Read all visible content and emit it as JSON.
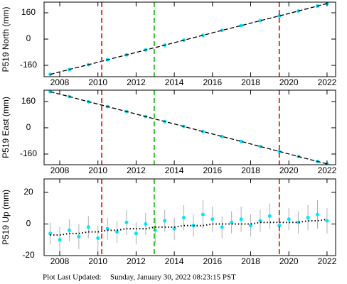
{
  "chart_data": [
    {
      "type": "scatter",
      "ylabel": "P519 North (mm)",
      "x": [
        2007.5,
        2008.5,
        2009.5,
        2010.5,
        2011.5,
        2012.5,
        2013.5,
        2014.5,
        2015.5,
        2016.5,
        2017.5,
        2018.5,
        2019.5,
        2020.5,
        2021.5,
        2022.0
      ],
      "series": [
        {
          "color": "#00e5ff",
          "mode": "markers",
          "values": [
            -215,
            -185,
            -156,
            -126,
            -96,
            -66,
            -37,
            -7,
            23,
            53,
            82,
            112,
            141,
            171,
            201,
            216
          ]
        },
        {
          "color": "#000000",
          "mode": "dashed-line",
          "values": [
            -215,
            -185,
            -156,
            -126,
            -96,
            -66,
            -37,
            -7,
            23,
            53,
            82,
            112,
            141,
            171,
            201,
            216
          ]
        }
      ],
      "events": [
        {
          "x": 2010.2,
          "color": "#e82020"
        },
        {
          "x": 2012.95,
          "color": "#20c020"
        },
        {
          "x": 2019.5,
          "color": "#e82020"
        }
      ],
      "xlim": [
        2007.18,
        2022.45
      ],
      "xticks": [
        2008,
        2010,
        2012,
        2014,
        2016,
        2018,
        2020,
        2022
      ],
      "ylim": [
        -229,
        225
      ],
      "yticks": [
        -160,
        0,
        160
      ]
    },
    {
      "type": "scatter",
      "ylabel": "P519 East (mm)",
      "x": [
        2007.5,
        2008.5,
        2009.5,
        2010.5,
        2011.5,
        2012.5,
        2013.5,
        2014.5,
        2015.5,
        2016.5,
        2017.5,
        2018.5,
        2019.5,
        2020.5,
        2021.5,
        2022.0
      ],
      "series": [
        {
          "color": "#00e5ff",
          "mode": "markers",
          "values": [
            220,
            190,
            159,
            129,
            99,
            68,
            38,
            8,
            -23,
            -53,
            -83,
            -114,
            -144,
            -175,
            -205,
            -220
          ]
        },
        {
          "color": "#000000",
          "mode": "dashed-line",
          "values": [
            220,
            190,
            159,
            129,
            99,
            68,
            38,
            8,
            -23,
            -53,
            -83,
            -114,
            -144,
            -175,
            -205,
            -220
          ]
        }
      ],
      "events": [
        {
          "x": 2010.2,
          "color": "#e82020"
        },
        {
          "x": 2012.95,
          "color": "#20c020"
        },
        {
          "x": 2019.5,
          "color": "#e82020"
        }
      ],
      "xlim": [
        2007.18,
        2022.45
      ],
      "xticks": [
        2008,
        2010,
        2012,
        2014,
        2016,
        2018,
        2020,
        2022
      ],
      "ylim": [
        -225,
        229
      ],
      "yticks": [
        -160,
        0,
        160
      ]
    },
    {
      "type": "scatter",
      "ylabel": "P519 Up (mm)",
      "x": [
        2007.5,
        2008.0,
        2008.5,
        2009.0,
        2009.5,
        2010.0,
        2010.5,
        2011.0,
        2011.5,
        2012.0,
        2012.5,
        2013.0,
        2013.5,
        2014.0,
        2014.5,
        2015.0,
        2015.5,
        2016.0,
        2016.5,
        2017.0,
        2017.5,
        2018.0,
        2018.5,
        2019.0,
        2019.5,
        2020.0,
        2020.5,
        2021.0,
        2021.5,
        2022.0
      ],
      "series": [
        {
          "color": "#00e5ff",
          "mode": "markers",
          "error_color": "#b0b0b0",
          "values": [
            -6,
            -10,
            -4,
            -8,
            -2,
            -9,
            -3,
            -5,
            1,
            -6,
            0,
            -4,
            2,
            -3,
            4,
            -1,
            6,
            3,
            -2,
            1,
            3,
            -1,
            2,
            5,
            -1,
            3,
            1,
            4,
            6,
            2
          ],
          "errors": [
            7,
            8,
            7,
            8,
            7,
            8,
            7,
            7,
            8,
            7,
            7,
            8,
            7,
            7,
            8,
            7,
            9,
            8,
            7,
            7,
            8,
            7,
            7,
            8,
            7,
            7,
            7,
            8,
            9,
            8
          ]
        },
        {
          "color": "#000000",
          "mode": "dotted-line",
          "values": [
            -7,
            -7,
            -6,
            -6,
            -5,
            -5,
            -4,
            -4,
            -3,
            -3,
            -3,
            -2,
            -2,
            -2,
            -1,
            -1,
            -1,
            0,
            0,
            0,
            0,
            0,
            1,
            1,
            1,
            1,
            1,
            2,
            2,
            3
          ]
        }
      ],
      "events": [
        {
          "x": 2010.2,
          "color": "#e82020"
        },
        {
          "x": 2012.95,
          "color": "#20c020"
        },
        {
          "x": 2019.5,
          "color": "#e82020"
        }
      ],
      "xlim": [
        2007.18,
        2022.45
      ],
      "xticks": [
        2008,
        2010,
        2012,
        2014,
        2016,
        2018,
        2020,
        2022
      ],
      "ylim": [
        -20,
        28.5
      ],
      "yticks": [
        -20,
        0,
        20
      ]
    }
  ],
  "footer": {
    "label": "Plot Last Updated:",
    "timestamp": "Sunday, January 30, 2022 08:23:15 PST"
  }
}
